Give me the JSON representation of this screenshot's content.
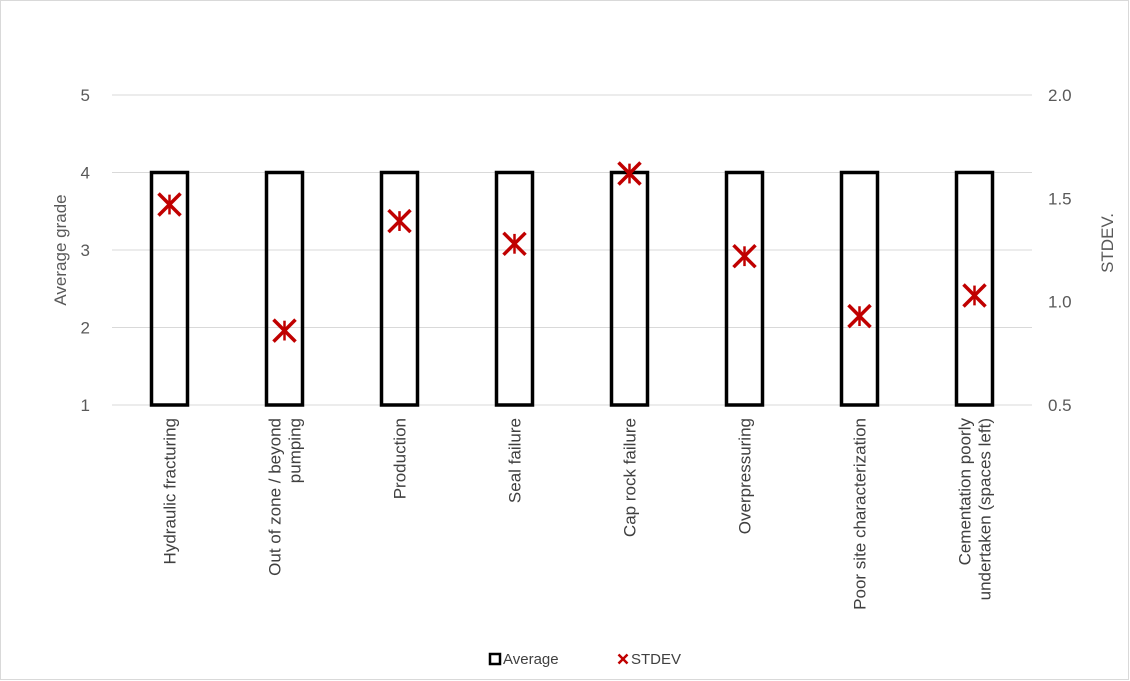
{
  "chart_data": {
    "type": "bar",
    "title": "",
    "categories": [
      [
        "Hydraulic fracturing"
      ],
      [
        "Out of zone / beyond",
        "pumping"
      ],
      [
        "Production"
      ],
      [
        "Seal failure"
      ],
      [
        "Cap rock failure"
      ],
      [
        "Overpressuring"
      ],
      [
        "Poor site characterization"
      ],
      [
        "Cementation poorly",
        "undertaken (spaces left)"
      ]
    ],
    "series": [
      {
        "name": "Average",
        "axis": "left",
        "style": "hollow-bar",
        "color": "#000000",
        "values": [
          4,
          4,
          4,
          4,
          4,
          4,
          4,
          4
        ]
      },
      {
        "name": "STDEV",
        "axis": "right",
        "style": "marker-x",
        "color": "#c00000",
        "values": [
          1.47,
          0.86,
          1.39,
          1.28,
          1.62,
          1.22,
          0.93,
          1.03
        ]
      }
    ],
    "ylabel": "Average grade",
    "y2label": "STDEV.",
    "ylim": [
      1,
      5
    ],
    "y2lim": [
      0.5,
      2.0
    ],
    "yticks": [
      "1",
      "2",
      "3",
      "4",
      "5"
    ],
    "y2ticks": [
      "0.5",
      "1.0",
      "1.5",
      "2.0"
    ],
    "grid": true,
    "legend_position": "bottom"
  }
}
